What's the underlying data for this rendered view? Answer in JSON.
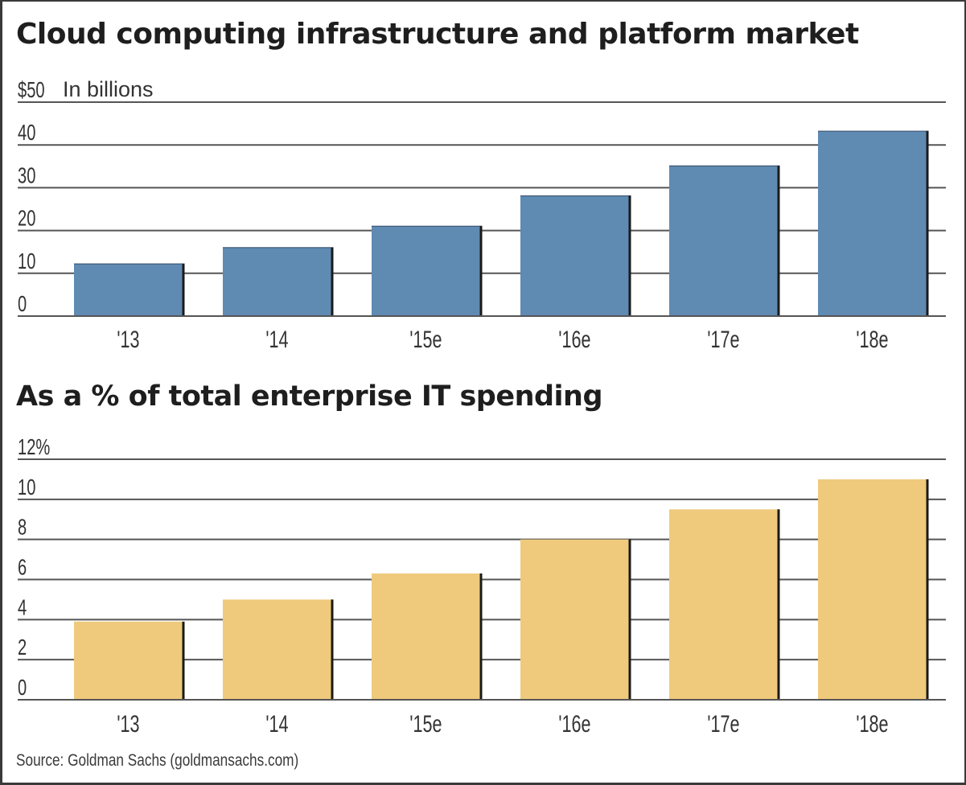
{
  "chart_data": [
    {
      "type": "bar",
      "title": "Cloud computing infrastructure and platform market",
      "unit_label": "In billions",
      "xlabel": "",
      "ylabel": "",
      "categories": [
        "'13",
        "'14",
        "'15e",
        "'16e",
        "'17e",
        "'18e"
      ],
      "values": [
        12.3,
        16.1,
        21.1,
        28.2,
        35.2,
        43.3
      ],
      "ylim": [
        0,
        50
      ],
      "yticks": [
        0,
        10,
        20,
        30,
        40,
        50
      ],
      "ytick_labels": [
        "0",
        "10",
        "20",
        "30",
        "40",
        "$50"
      ],
      "grid": true,
      "color": "#5f8ab2"
    },
    {
      "type": "bar",
      "title": "As a % of total enterprise IT spending",
      "xlabel": "",
      "ylabel": "",
      "categories": [
        "'13",
        "'14",
        "'15e",
        "'16e",
        "'17e",
        "'18e"
      ],
      "values": [
        3.9,
        5.0,
        6.3,
        8.0,
        9.5,
        11.0
      ],
      "ylim": [
        0,
        12
      ],
      "yticks": [
        0,
        2,
        4,
        6,
        8,
        10,
        12
      ],
      "ytick_labels": [
        "0",
        "2",
        "4",
        "6",
        "8",
        "10",
        "12%"
      ],
      "grid": true,
      "color": "#efca7c"
    }
  ],
  "source": "Source: Goldman Sachs (goldmansachs.com)"
}
